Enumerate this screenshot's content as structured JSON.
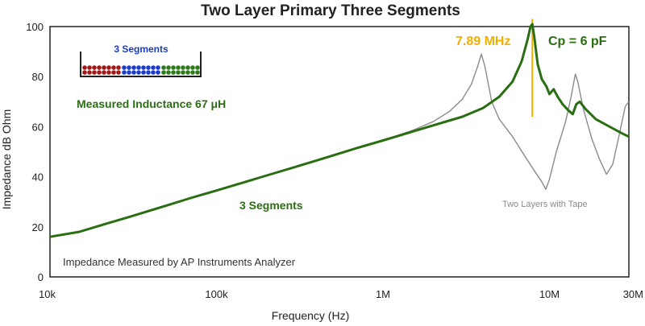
{
  "chart_data": {
    "type": "line",
    "title": "Two Layer Primary Three Segments",
    "xlabel": "Frequency (Hz)",
    "ylabel": "Impedance dB Ohm",
    "xscale": "log",
    "xlim": [
      10000,
      30000000
    ],
    "ylim": [
      0,
      100
    ],
    "x_ticks": [
      {
        "value": 10000,
        "label": "10k"
      },
      {
        "value": 100000,
        "label": "100k"
      },
      {
        "value": 1000000,
        "label": "1M"
      },
      {
        "value": 10000000,
        "label": "10M"
      },
      {
        "value": 30000000,
        "label": "30M"
      }
    ],
    "y_ticks": [
      {
        "value": 0,
        "label": "0"
      },
      {
        "value": 20,
        "label": "20"
      },
      {
        "value": 40,
        "label": "40"
      },
      {
        "value": 60,
        "label": "60"
      },
      {
        "value": 80,
        "label": "80"
      },
      {
        "value": 100,
        "label": "100"
      }
    ],
    "grid": false,
    "series": [
      {
        "name": "3 Segments",
        "color": "#2a6e12",
        "points": [
          [
            10000,
            16
          ],
          [
            15000,
            18
          ],
          [
            20000,
            20.5
          ],
          [
            30000,
            24
          ],
          [
            50000,
            28.5
          ],
          [
            70000,
            31.5
          ],
          [
            100000,
            34.5
          ],
          [
            150000,
            38
          ],
          [
            200000,
            40.5
          ],
          [
            300000,
            44
          ],
          [
            500000,
            48.5
          ],
          [
            700000,
            51.5
          ],
          [
            1000000,
            54.5
          ],
          [
            1500000,
            58
          ],
          [
            2000000,
            60.5
          ],
          [
            3000000,
            64
          ],
          [
            4000000,
            67.5
          ],
          [
            5000000,
            72
          ],
          [
            6000000,
            78
          ],
          [
            6800000,
            86
          ],
          [
            7400000,
            95
          ],
          [
            7700000,
            100
          ],
          [
            7890000,
            101
          ],
          [
            8100000,
            96
          ],
          [
            8500000,
            85
          ],
          [
            9000000,
            79
          ],
          [
            9600000,
            76
          ],
          [
            10000000,
            73
          ],
          [
            10600000,
            75
          ],
          [
            11200000,
            72
          ],
          [
            12000000,
            69
          ],
          [
            13000000,
            66.5
          ],
          [
            13800000,
            65
          ],
          [
            14500000,
            69
          ],
          [
            15200000,
            70
          ],
          [
            16500000,
            67
          ],
          [
            19000000,
            63
          ],
          [
            23000000,
            60
          ],
          [
            27000000,
            57.5
          ],
          [
            30000000,
            56
          ]
        ]
      },
      {
        "name": "Two Layers with Tape",
        "color": "#8a8a8a",
        "points": [
          [
            1000000,
            54.5
          ],
          [
            1500000,
            58.5
          ],
          [
            2000000,
            62
          ],
          [
            2500000,
            66
          ],
          [
            3000000,
            71
          ],
          [
            3400000,
            77
          ],
          [
            3700000,
            84
          ],
          [
            3900000,
            89
          ],
          [
            4100000,
            84
          ],
          [
            4500000,
            70
          ],
          [
            5000000,
            63
          ],
          [
            6000000,
            56
          ],
          [
            7000000,
            49
          ],
          [
            8000000,
            43
          ],
          [
            9000000,
            38
          ],
          [
            9500000,
            35
          ],
          [
            10000000,
            39
          ],
          [
            11000000,
            50
          ],
          [
            12500000,
            62
          ],
          [
            13500000,
            72
          ],
          [
            14300000,
            81
          ],
          [
            14800000,
            78
          ],
          [
            16000000,
            67
          ],
          [
            18000000,
            55
          ],
          [
            20000000,
            47
          ],
          [
            22000000,
            41
          ],
          [
            24000000,
            45
          ],
          [
            26500000,
            58
          ],
          [
            28500000,
            68
          ],
          [
            30000000,
            70
          ]
        ]
      }
    ],
    "resonance": {
      "frequency": 7890000,
      "y_range": [
        64,
        103
      ],
      "color": "#f0b000",
      "label": "7.89 MHz"
    },
    "annotations": {
      "capacitance": "Cp = 6 pF",
      "inductance": "Measured Inductance 67 μH",
      "series_label": "3 Segments",
      "tape_label": "Two Layers with Tape",
      "analyzer_note": "Impedance Measured by AP Instruments Analyzer",
      "inset_title": "3 Segments"
    },
    "colors": {
      "green": "#2a6e12",
      "gray": "#8a8a8a",
      "orange": "#f0b000",
      "inset_blue": "#1a3cc8",
      "seg_red": "#a01818",
      "seg_blue": "#1a3cc8",
      "seg_green": "#2f7a1a"
    }
  }
}
